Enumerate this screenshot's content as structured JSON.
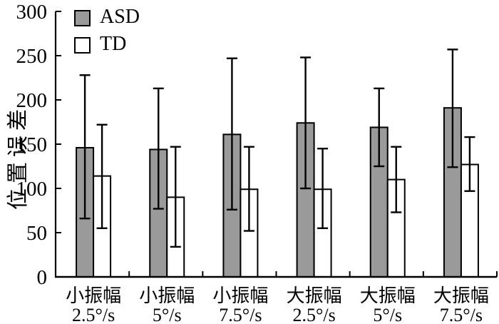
{
  "chart_data": {
    "type": "bar",
    "title": "",
    "xlabel": "",
    "ylabel": "位置误差",
    "ylim": [
      0,
      300
    ],
    "ytick_interval": 50,
    "yticks": [
      0,
      50,
      100,
      150,
      200,
      250,
      300
    ],
    "grid": false,
    "legend_position": "top-left-inside",
    "categories": [
      {
        "amplitude": "小振幅",
        "speed": "2.5°/s"
      },
      {
        "amplitude": "小振幅",
        "speed": "5°/s"
      },
      {
        "amplitude": "小振幅",
        "speed": "7.5°/s"
      },
      {
        "amplitude": "大振幅",
        "speed": "2.5°/s"
      },
      {
        "amplitude": "大振幅",
        "speed": "5°/s"
      },
      {
        "amplitude": "大振幅",
        "speed": "7.5°/s"
      }
    ],
    "series": [
      {
        "name": "ASD",
        "fill": "#9a9a9a",
        "values": [
          146,
          144,
          161,
          174,
          169,
          191
        ],
        "error_low": [
          66,
          77,
          76,
          100,
          125,
          124
        ],
        "error_high": [
          228,
          213,
          247,
          248,
          213,
          257
        ]
      },
      {
        "name": "TD",
        "fill": "#ffffff",
        "values": [
          114,
          90,
          99,
          99,
          110,
          127
        ],
        "error_low": [
          55,
          34,
          52,
          55,
          73,
          97
        ],
        "error_high": [
          172,
          147,
          147,
          145,
          147,
          158
        ]
      }
    ],
    "colors": {
      "axis": "#000000",
      "bar_stroke": "#000000",
      "error_bar": "#000000",
      "text": "#000000"
    }
  }
}
